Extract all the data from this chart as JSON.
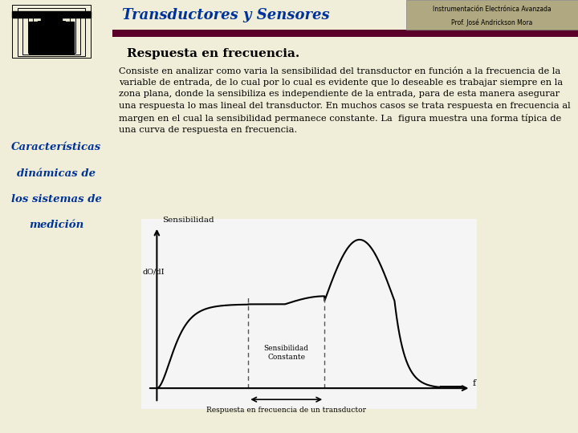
{
  "slide_bg": "#f0eed8",
  "left_panel_color": "#c8c4a0",
  "header_bar_color": "#5a0028",
  "header_title": "Transductores y Sensores",
  "header_title_color": "#003399",
  "instr_label1": "Instrumentación Electrónica Avanzada",
  "instr_label2": "Prof. José Andrickson Mora",
  "instr_box_color": "#b0a880",
  "section_title": "Respuesta en frecuencia.",
  "left_menu_line1": "Características",
  "left_menu_line2": "dinámicas de",
  "left_menu_line3": "los sistemas de",
  "left_menu_line4": "medición",
  "left_menu_color": "#003399",
  "graph_bg": "#f5f5f5",
  "graph_line_color": "#000000",
  "graph_ylabel": "Sensibilidad",
  "graph_ylabel2": "dO/dI",
  "graph_xlabel": "f",
  "graph_label_constante": "Sensibilidad\nConstante",
  "graph_caption": "Respuesta en frecuencia de un transductor",
  "dashed_line_color": "#555555",
  "body_text": "Consiste en analizar como varia la sensibilidad del transductor en función a la frecuencia de la variable de entrada, de lo cual por lo cual es evidente que lo deseable es trabajar siempre en la zona plana, donde la sensibiliza es independiente de la entrada, para de esta manera asegurar una respuesta lo mas lineal del transductor. En muchos casos se trata respuesta en frecuencia al margen en el cual la sensibilidad permanece constante. La  figura muestra una forma típica de una curva de respuesta en frecuencia."
}
